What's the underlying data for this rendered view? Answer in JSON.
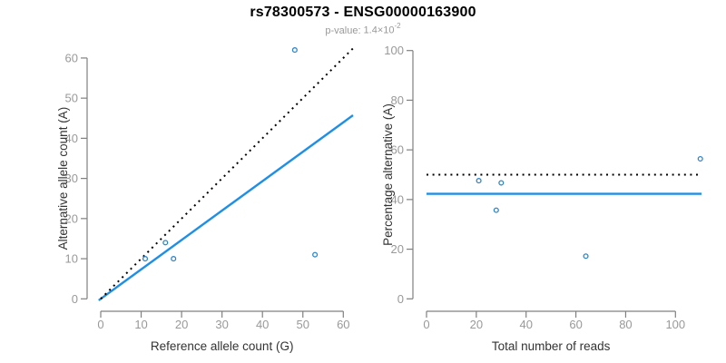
{
  "header": {
    "title": "rs78300573 - ENSG00000163900",
    "subtitle": {
      "label": "p-value:",
      "mantissa": "1.4",
      "multiply_sign": "×",
      "base": "10",
      "exponent": "-2"
    }
  },
  "colors": {
    "title_black": "#000000",
    "subtitle_gray": "#999999",
    "axis_line_gray": "#808080",
    "tick_label_gray": "#999999",
    "axis_title_dark": "#333333",
    "regression_blue": "#1E8FE8",
    "point_blue": "#2E86C8",
    "identity_black": "#000000"
  },
  "chart_data": [
    {
      "type": "scatter",
      "xlabel": "Reference allele count (G)",
      "ylabel": "Alternative allele count (A)",
      "xlim": [
        0,
        60
      ],
      "ylim": [
        0,
        60
      ],
      "xticks": [
        0,
        10,
        20,
        30,
        40,
        50,
        60
      ],
      "yticks": [
        0,
        10,
        20,
        30,
        40,
        50,
        60
      ],
      "grid": false,
      "legend": "none",
      "point_style": "open-circle",
      "points": [
        {
          "x": 11,
          "y": 10
        },
        {
          "x": 16,
          "y": 14
        },
        {
          "x": 18,
          "y": 10
        },
        {
          "x": 48,
          "y": 62
        },
        {
          "x": 53,
          "y": 11
        }
      ],
      "lines": [
        {
          "name": "regression-line",
          "style": "solid",
          "slope": 0.733,
          "intercept": 0,
          "x_range": [
            -0.5,
            62.4
          ],
          "color_key": "regression_blue"
        },
        {
          "name": "identity-line",
          "style": "dotted",
          "slope": 1,
          "intercept": 0,
          "x_range": [
            0,
            62.4
          ],
          "color_key": "identity_black"
        }
      ]
    },
    {
      "type": "scatter",
      "xlabel": "Total number of reads",
      "ylabel": "Percentage alternative (A)",
      "xlim": [
        0,
        110
      ],
      "ylim": [
        0,
        100
      ],
      "xticks": [
        0,
        20,
        40,
        60,
        80,
        100
      ],
      "yticks": [
        0,
        20,
        40,
        60,
        80,
        100
      ],
      "grid": false,
      "legend": "none",
      "point_style": "open-circle",
      "points": [
        {
          "x": 21,
          "y": 47.6
        },
        {
          "x": 30,
          "y": 46.7
        },
        {
          "x": 28,
          "y": 35.7
        },
        {
          "x": 64,
          "y": 17.2
        },
        {
          "x": 110,
          "y": 56.4
        }
      ],
      "lines": [
        {
          "name": "mean-percentage-line",
          "style": "solid",
          "slope": 0,
          "intercept": 42.3,
          "x_range": [
            0,
            110.5
          ],
          "color_key": "regression_blue"
        },
        {
          "name": "fifty-percent-line",
          "style": "dotted",
          "slope": 0,
          "intercept": 50,
          "x_range": [
            0,
            110.5
          ],
          "color_key": "identity_black"
        }
      ]
    }
  ]
}
